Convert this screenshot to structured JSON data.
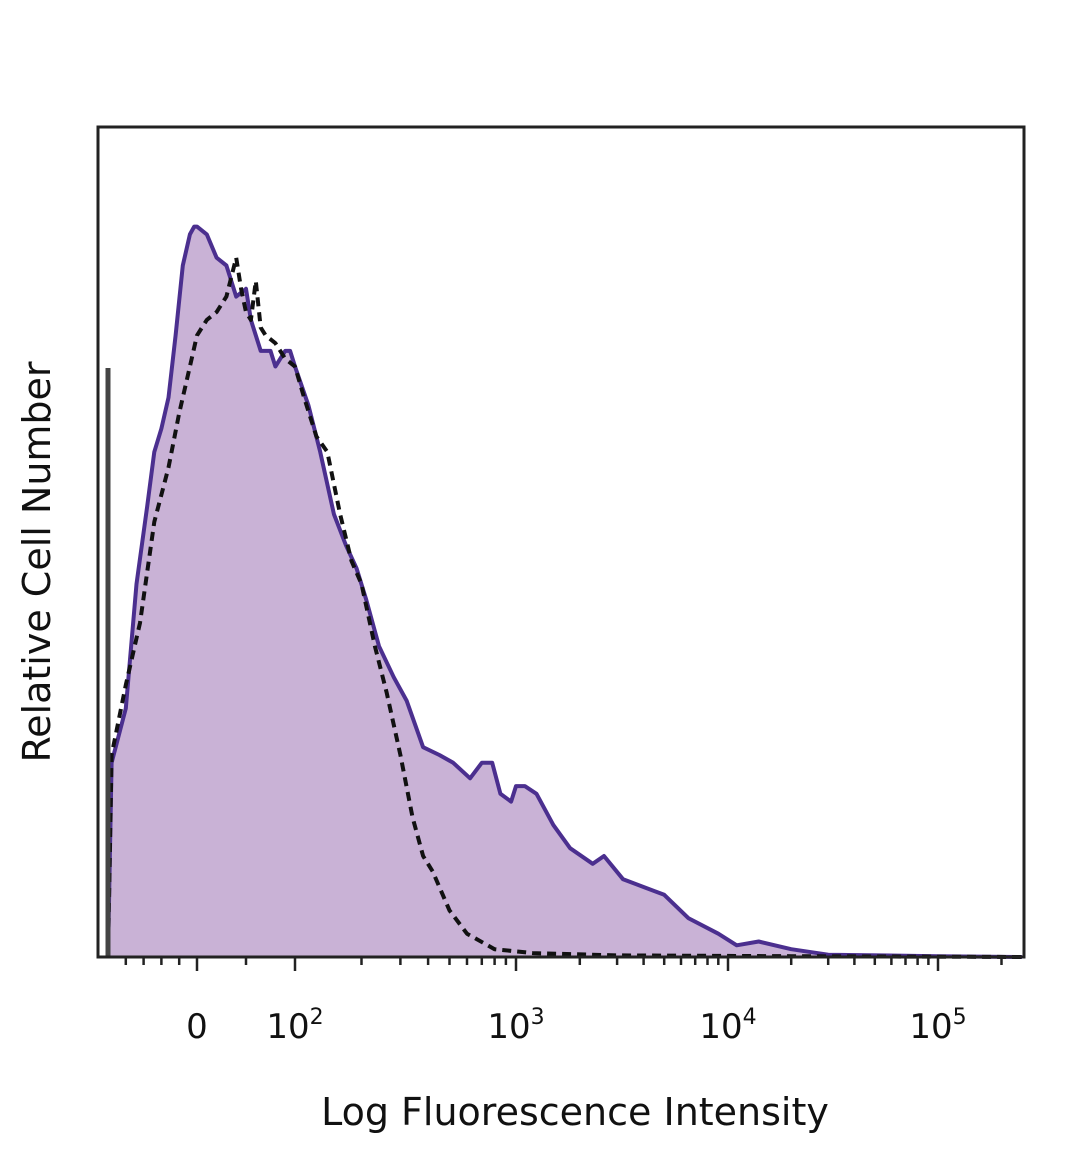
{
  "chart_data": {
    "type": "area",
    "xlabel": "Log Fluorescence Intensity",
    "ylabel": "Relative Cell Number",
    "xscale": "biexponential",
    "x_ticks": [
      {
        "value": 0,
        "label": "0",
        "exp": ""
      },
      {
        "value": 100,
        "label": "10",
        "exp": "2"
      },
      {
        "value": 1000,
        "label": "10",
        "exp": "3"
      },
      {
        "value": 10000,
        "label": "10",
        "exp": "4"
      },
      {
        "value": 100000,
        "label": "10",
        "exp": "5"
      }
    ],
    "xlim": [
      -250,
      250000
    ],
    "ylim": [
      0,
      100
    ],
    "grid": false,
    "legend": "none",
    "series": [
      {
        "style": "filled-solid",
        "line_color": "#4b2f8f",
        "fill_color": "#c9b2d6",
        "points": [
          [
            -250,
            0
          ],
          [
            -240,
            25
          ],
          [
            -200,
            32
          ],
          [
            -170,
            48
          ],
          [
            -140,
            58
          ],
          [
            -120,
            65
          ],
          [
            -100,
            68
          ],
          [
            -80,
            72
          ],
          [
            -60,
            80
          ],
          [
            -40,
            89
          ],
          [
            -20,
            93
          ],
          [
            -8,
            94
          ],
          [
            0,
            94
          ],
          [
            10,
            93
          ],
          [
            20,
            90
          ],
          [
            30,
            89
          ],
          [
            35,
            87
          ],
          [
            40,
            85
          ],
          [
            50,
            86
          ],
          [
            55,
            82
          ],
          [
            60,
            80
          ],
          [
            65,
            78
          ],
          [
            70,
            78
          ],
          [
            75,
            78
          ],
          [
            80,
            76
          ],
          [
            85,
            77
          ],
          [
            90,
            78
          ],
          [
            95,
            78
          ],
          [
            100,
            76
          ],
          [
            115,
            71
          ],
          [
            130,
            65
          ],
          [
            150,
            57
          ],
          [
            170,
            53
          ],
          [
            190,
            50
          ],
          [
            210,
            46
          ],
          [
            240,
            40
          ],
          [
            280,
            36
          ],
          [
            320,
            33
          ],
          [
            380,
            27
          ],
          [
            450,
            26
          ],
          [
            520,
            25
          ],
          [
            620,
            23
          ],
          [
            700,
            25
          ],
          [
            780,
            25
          ],
          [
            850,
            21
          ],
          [
            950,
            20
          ],
          [
            1000,
            22
          ],
          [
            1100,
            22
          ],
          [
            1250,
            21
          ],
          [
            1500,
            17
          ],
          [
            1800,
            14
          ],
          [
            2300,
            12
          ],
          [
            2600,
            13
          ],
          [
            3200,
            10
          ],
          [
            5000,
            8
          ],
          [
            6500,
            5
          ],
          [
            9000,
            3
          ],
          [
            11000,
            1.5
          ],
          [
            14000,
            2
          ],
          [
            20000,
            1
          ],
          [
            30000,
            0.3
          ],
          [
            100000,
            0.1
          ],
          [
            250000,
            0
          ]
        ]
      },
      {
        "style": "dashed",
        "line_color": "#111111",
        "points": [
          [
            -250,
            0
          ],
          [
            -240,
            26
          ],
          [
            -200,
            35
          ],
          [
            -160,
            43
          ],
          [
            -120,
            56
          ],
          [
            -80,
            63
          ],
          [
            -50,
            70
          ],
          [
            -20,
            76
          ],
          [
            -5,
            79
          ],
          [
            0,
            80
          ],
          [
            10,
            82
          ],
          [
            20,
            83
          ],
          [
            30,
            85
          ],
          [
            40,
            90
          ],
          [
            45,
            86
          ],
          [
            50,
            83
          ],
          [
            55,
            82
          ],
          [
            60,
            87
          ],
          [
            65,
            81
          ],
          [
            70,
            80
          ],
          [
            80,
            79
          ],
          [
            90,
            77
          ],
          [
            100,
            76
          ],
          [
            110,
            72
          ],
          [
            125,
            67
          ],
          [
            140,
            65
          ],
          [
            160,
            57
          ],
          [
            180,
            51
          ],
          [
            200,
            48
          ],
          [
            230,
            40
          ],
          [
            260,
            34
          ],
          [
            300,
            26
          ],
          [
            340,
            18
          ],
          [
            380,
            13
          ],
          [
            420,
            11
          ],
          [
            500,
            6
          ],
          [
            600,
            3
          ],
          [
            800,
            1
          ],
          [
            1200,
            0.5
          ],
          [
            3000,
            0.2
          ],
          [
            20000,
            0.1
          ],
          [
            250000,
            0
          ]
        ]
      }
    ]
  }
}
